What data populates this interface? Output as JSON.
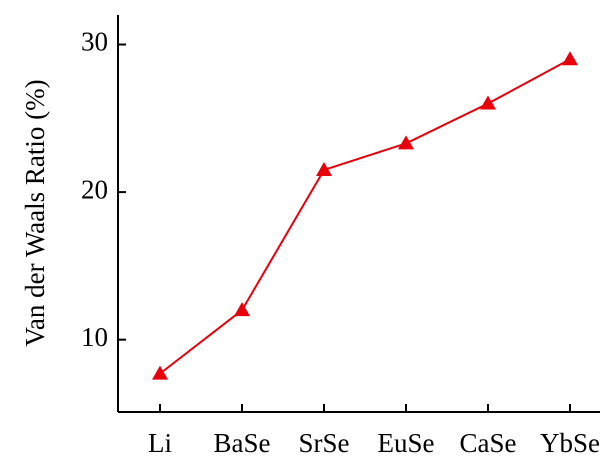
{
  "chart_data": {
    "type": "line",
    "y_label": "Van der Waals Ratio (%)",
    "categories": [
      "Li",
      "BaSe",
      "SrSe",
      "EuSe",
      "CaSe",
      "YbSe"
    ],
    "series": [
      {
        "name": "Van der Waals Ratio",
        "color": "#e8000b",
        "values": [
          7.7,
          12.0,
          21.5,
          23.3,
          26.0,
          29.0
        ]
      }
    ],
    "ylim": [
      5.1,
      32
    ],
    "yticks": [
      10,
      20,
      30
    ],
    "grid": false
  }
}
